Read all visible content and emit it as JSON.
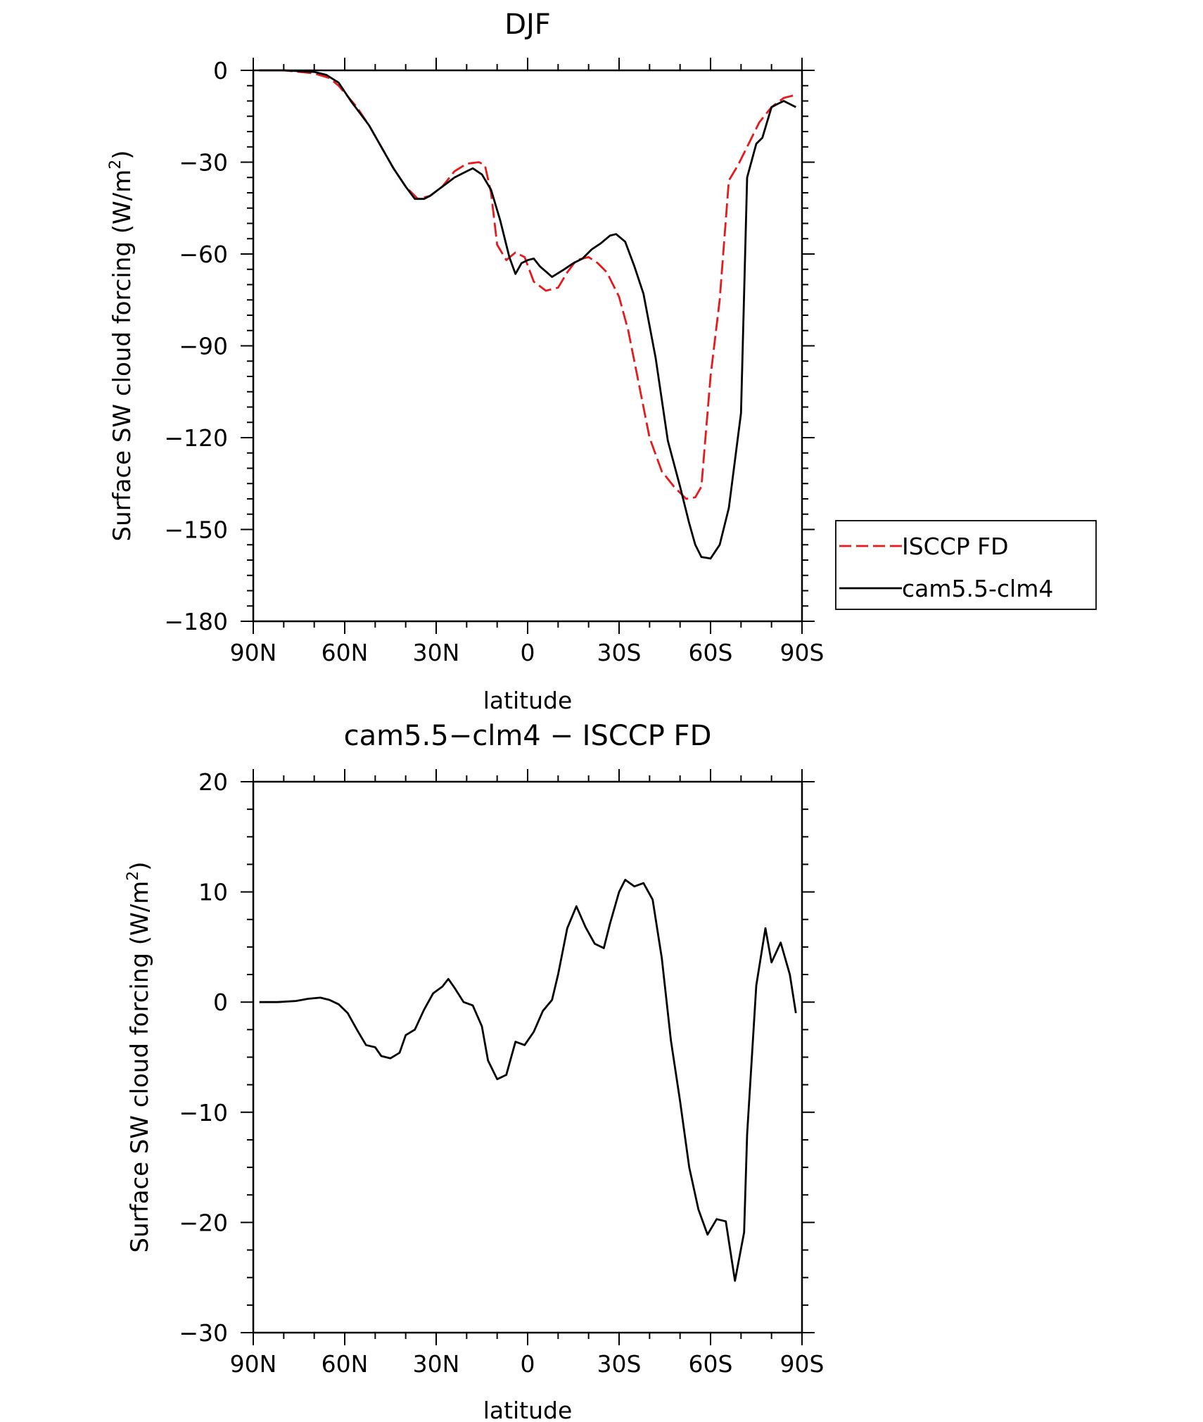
{
  "chart_data": [
    {
      "type": "line",
      "title": "DJF",
      "xlabel": "latitude",
      "ylabel": "Surface SW cloud forcing (W/m²)",
      "ylabel_main": "Surface SW cloud forcing (W/m",
      "ylabel_sup": "2",
      "ylabel_end": ")",
      "xlim": [
        90,
        -90
      ],
      "ylim": [
        -180,
        0
      ],
      "x_ticks": [
        {
          "value": 90,
          "label": "90N"
        },
        {
          "value": 60,
          "label": "60N"
        },
        {
          "value": 30,
          "label": "30N"
        },
        {
          "value": 0,
          "label": "0"
        },
        {
          "value": -30,
          "label": "30S"
        },
        {
          "value": -60,
          "label": "60S"
        },
        {
          "value": -90,
          "label": "90S"
        }
      ],
      "y_ticks": [
        {
          "value": 0,
          "label": "0"
        },
        {
          "value": -30,
          "label": "−30"
        },
        {
          "value": -60,
          "label": "−60"
        },
        {
          "value": -90,
          "label": "−90"
        },
        {
          "value": -120,
          "label": "−120"
        },
        {
          "value": -150,
          "label": "−150"
        },
        {
          "value": -180,
          "label": "−180"
        }
      ],
      "legend_position": "right",
      "series": [
        {
          "name": "ISCCP FD",
          "color": "#e8191a",
          "dash": "dashed",
          "x": [
            88,
            80,
            70,
            65,
            62,
            56,
            52,
            48,
            44,
            40,
            36,
            32,
            28,
            24,
            20,
            16,
            14,
            12,
            10,
            7,
            4,
            1,
            -2,
            -6,
            -10,
            -13,
            -16,
            -20,
            -23,
            -26,
            -30,
            -33,
            -36,
            -40,
            -44,
            -48,
            -52,
            -55,
            -57,
            -60,
            -63,
            -66,
            -69,
            -72,
            -76,
            -80,
            -84,
            -88
          ],
          "y": [
            0,
            0,
            -1,
            -2.5,
            -5,
            -12,
            -18,
            -25,
            -32,
            -38,
            -42,
            -41,
            -38,
            -33,
            -30.5,
            -30,
            -31,
            -40,
            -57,
            -62,
            -59.5,
            -61,
            -69,
            -72,
            -71,
            -66,
            -62,
            -61,
            -63,
            -66,
            -74,
            -85,
            -100,
            -120,
            -131,
            -136,
            -140,
            -139.5,
            -136,
            -100,
            -75,
            -36,
            -31,
            -25,
            -17,
            -12,
            -9,
            -8
          ]
        },
        {
          "name": "cam5.5-clm4",
          "color": "#000000",
          "dash": "solid",
          "x": [
            88,
            80,
            70,
            66,
            62,
            58,
            52,
            48,
            44,
            40,
            37,
            34,
            32,
            28,
            24,
            20,
            18,
            15,
            12,
            9,
            6,
            4,
            2,
            0,
            -2,
            -4,
            -8,
            -12,
            -15,
            -18,
            -21,
            -24,
            -27,
            -29,
            -32,
            -35,
            -38,
            -42,
            -46,
            -50,
            -53,
            -55,
            -57,
            -60,
            -63,
            -66,
            -70,
            -72,
            -75,
            -77,
            -80,
            -82,
            -84,
            -88
          ],
          "y": [
            0,
            0,
            -0.5,
            -1.5,
            -4,
            -10,
            -18,
            -25,
            -32,
            -38,
            -42,
            -42,
            -41,
            -38,
            -35,
            -33,
            -32,
            -34,
            -39,
            -49,
            -61,
            -66.5,
            -63,
            -62,
            -61.5,
            -64,
            -67.5,
            -65,
            -63,
            -61.5,
            -58.5,
            -56.5,
            -54,
            -53.5,
            -56,
            -64,
            -73,
            -94,
            -121,
            -136,
            -148,
            -155,
            -159,
            -159.5,
            -155,
            -143,
            -112,
            -35,
            -24,
            -22,
            -12,
            -11,
            -10,
            -12
          ]
        }
      ]
    },
    {
      "type": "line",
      "title": "cam5.5−clm4 − ISCCP FD",
      "xlabel": "latitude",
      "ylabel": "Surface SW cloud forcing (W/m²)",
      "ylabel_main": "Surface SW cloud forcing (W/m",
      "ylabel_sup": "2",
      "ylabel_end": ")",
      "xlim": [
        90,
        -90
      ],
      "ylim": [
        -30,
        20
      ],
      "x_ticks": [
        {
          "value": 90,
          "label": "90N"
        },
        {
          "value": 60,
          "label": "60N"
        },
        {
          "value": 30,
          "label": "30N"
        },
        {
          "value": 0,
          "label": "0"
        },
        {
          "value": -30,
          "label": "30S"
        },
        {
          "value": -60,
          "label": "60S"
        },
        {
          "value": -90,
          "label": "90S"
        }
      ],
      "y_ticks": [
        {
          "value": 20,
          "label": "20"
        },
        {
          "value": 10,
          "label": "10"
        },
        {
          "value": 0,
          "label": "0"
        },
        {
          "value": -10,
          "label": "−10"
        },
        {
          "value": -20,
          "label": "−20"
        },
        {
          "value": -30,
          "label": "−30"
        }
      ],
      "series": [
        {
          "name": "",
          "color": "#000000",
          "dash": "solid",
          "x": [
            88,
            82,
            76,
            72,
            68,
            65,
            62,
            59,
            56,
            53,
            50,
            48,
            45,
            42,
            40,
            37,
            34,
            31,
            28,
            26,
            24,
            21,
            18,
            15,
            13,
            10,
            7,
            4,
            1,
            -2,
            -5,
            -8,
            -10,
            -13,
            -16,
            -19,
            -22,
            -25,
            -27,
            -30,
            -32,
            -35,
            -38,
            -41,
            -44,
            -47,
            -50,
            -53,
            -56,
            -59,
            -62,
            -65,
            -68,
            -71,
            -72,
            -75,
            -78,
            -80,
            -83,
            -86,
            -88
          ],
          "y": [
            0,
            0,
            0.1,
            0.3,
            0.4,
            0.2,
            -0.2,
            -1,
            -2.5,
            -3.9,
            -4.1,
            -4.9,
            -5.1,
            -4.6,
            -3,
            -2.5,
            -0.7,
            0.8,
            1.4,
            2.1,
            1.3,
            0,
            -0.3,
            -2.2,
            -5.3,
            -7,
            -6.6,
            -3.6,
            -3.9,
            -2.7,
            -0.8,
            0.2,
            2.5,
            6.7,
            8.7,
            6.8,
            5.3,
            4.9,
            7.1,
            10,
            11.1,
            10.5,
            10.8,
            9.3,
            4,
            -3.5,
            -9,
            -15,
            -18.8,
            -21.1,
            -19.7,
            -19.9,
            -25.3,
            -20.9,
            -12,
            1.5,
            6.7,
            3.6,
            5.4,
            2.5,
            -1
          ]
        }
      ]
    }
  ]
}
